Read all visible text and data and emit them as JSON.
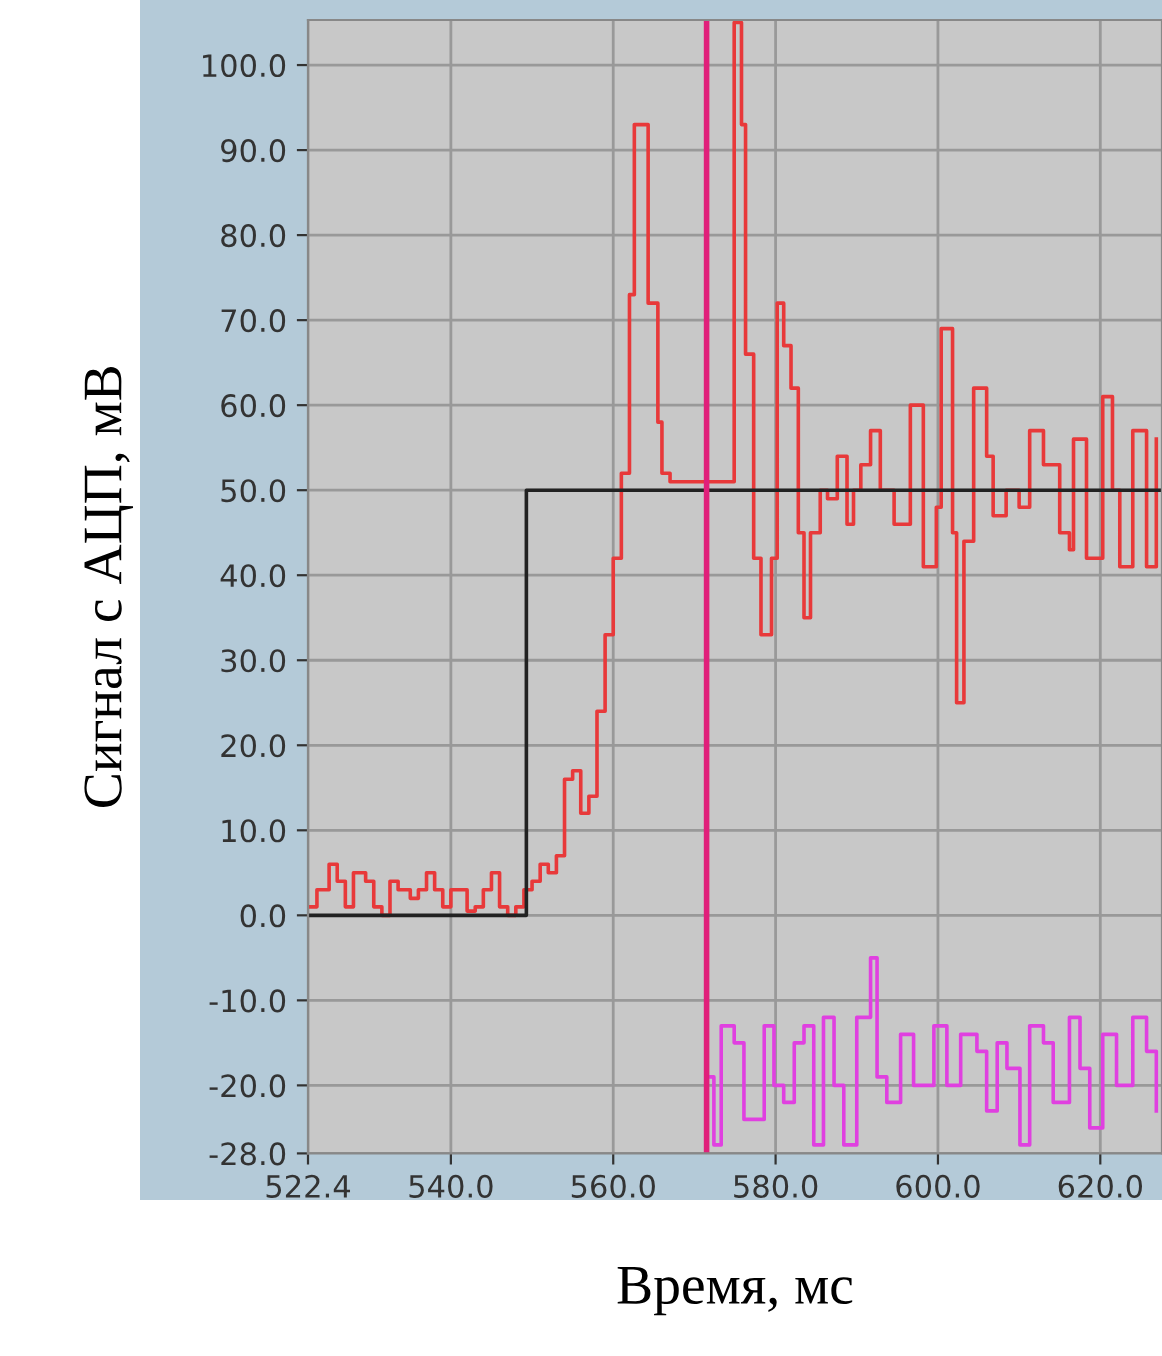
{
  "chart_data": {
    "type": "step",
    "xlabel": "Время, мс",
    "ylabel": "Сигнал с АЦП, мВ",
    "xlim": [
      522.4,
      627.6
    ],
    "ylim": [
      -28,
      105.3
    ],
    "xticks": [
      522.4,
      {
        "value": 540,
        "label": "540.0"
      },
      {
        "value": 560,
        "label": "560.0"
      },
      {
        "value": 580,
        "label": "580.0"
      },
      {
        "value": 600,
        "label": "600.0"
      },
      {
        "value": 620,
        "label": "620.0"
      }
    ],
    "yticks": [
      {
        "value": -28,
        "label": "-28.0"
      },
      {
        "value": -20,
        "label": "-20.0"
      },
      {
        "value": -10,
        "label": "-10.0"
      },
      {
        "value": 0,
        "label": "0.0"
      },
      {
        "value": 10,
        "label": "10.0"
      },
      {
        "value": 20,
        "label": "20.0"
      },
      {
        "value": 30,
        "label": "30.0"
      },
      {
        "value": 40,
        "label": "40.0"
      },
      {
        "value": 50,
        "label": "50.0"
      },
      {
        "value": 60,
        "label": "60.0"
      },
      {
        "value": 70,
        "label": "70.0"
      },
      {
        "value": 80,
        "label": "80.0"
      },
      {
        "value": 90,
        "label": "90.0"
      },
      {
        "value": 100,
        "label": "100.0"
      }
    ],
    "grid": true,
    "ref_lines": [
      {
        "axis": "x",
        "value": 571.5,
        "label": null,
        "color": "#e0207a"
      }
    ],
    "series": [
      {
        "color": "#e8393a",
        "x": [
          522.4,
          523.5,
          525,
          526,
          527,
          528,
          529.5,
          530.5,
          531.5,
          532.5,
          533.5,
          535,
          536,
          537,
          538,
          539,
          540,
          541,
          542,
          543,
          544,
          545,
          546,
          547,
          548,
          549,
          550,
          551,
          552,
          553,
          554,
          555,
          556,
          557,
          558,
          559,
          560,
          561,
          562,
          562.6,
          564.3,
          565.5,
          566,
          567,
          568,
          574.9,
          575.8,
          576.3,
          577.3,
          578.2,
          579.5,
          580.2,
          581,
          581.9,
          582.8,
          583.5,
          584.3,
          585.5,
          586.4,
          587.6,
          588.8,
          589.6,
          590.5,
          591.7,
          592.9,
          594.6,
          596.6,
          598.2,
          599.8,
          600.4,
          601.8,
          602.3,
          603.2,
          604.4,
          606,
          606.8,
          608.4,
          610,
          611.3,
          613,
          615,
          616.2,
          616.7,
          618.3,
          620.3,
          621.5,
          622.4,
          624,
          625.7,
          626.9
        ],
        "values": [
          1,
          3,
          6,
          4,
          1,
          5,
          4,
          1,
          0,
          4,
          3,
          2,
          3,
          5,
          3,
          1,
          3,
          3,
          0.5,
          1,
          3,
          5,
          1,
          0,
          1,
          3,
          4,
          6,
          5,
          7,
          16,
          17,
          12,
          14,
          24,
          33,
          42,
          52,
          73,
          93,
          72,
          58,
          52,
          51,
          51,
          105,
          93,
          66,
          42,
          33,
          42,
          72,
          67,
          62,
          45,
          35,
          45,
          50,
          49,
          54,
          46,
          50,
          53,
          57,
          50,
          46,
          60,
          41,
          48,
          69,
          45,
          25,
          44,
          62,
          54,
          47,
          50,
          48,
          57,
          53,
          45,
          43,
          56,
          42,
          61,
          50,
          41,
          57,
          41,
          56
        ]
      },
      {
        "color": "#222222",
        "x": [
          522.4,
          549.3,
          627.6
        ],
        "values": [
          0,
          50,
          50
        ]
      },
      {
        "color": "#e040e0",
        "x": [
          571.5,
          572.4,
          573.3,
          574.9,
          576.1,
          577.4,
          578.6,
          579.8,
          581,
          582.3,
          583.5,
          584.7,
          585.9,
          587.2,
          588.4,
          590,
          591.7,
          592.5,
          593.7,
          595.4,
          597,
          599.5,
          601.1,
          602.8,
          604.8,
          606,
          607.3,
          608.5,
          610.1,
          611.3,
          613,
          614.2,
          616.2,
          617.5,
          618.7,
          620.3,
          622,
          624,
          625.7,
          626.9
        ],
        "values": [
          -19,
          -27,
          -13,
          -15,
          -24,
          -24,
          -13,
          -20,
          -22,
          -15,
          -13,
          -27,
          -12,
          -20,
          -27,
          -12,
          -5,
          -19,
          -22,
          -14,
          -20,
          -13,
          -20,
          -14,
          -16,
          -23,
          -15,
          -18,
          -27,
          -13,
          -15,
          -22,
          -12,
          -18,
          -25,
          -14,
          -20,
          -12,
          -16,
          -23
        ]
      }
    ]
  }
}
